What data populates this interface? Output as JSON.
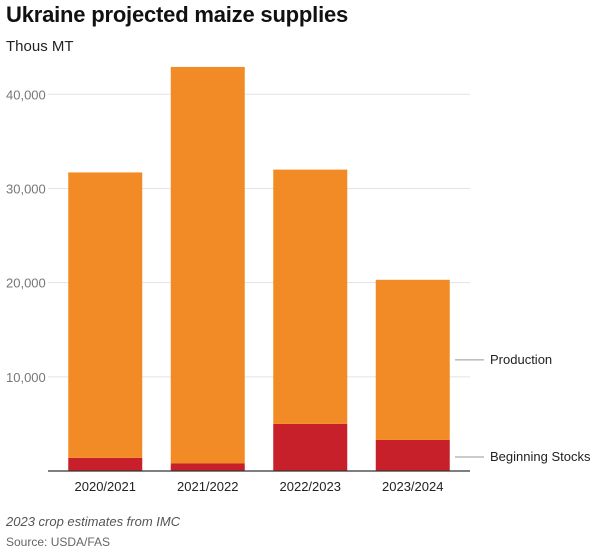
{
  "chart_data": {
    "type": "bar",
    "stacked": true,
    "title": "Ukraine projected maize supplies",
    "subtitle": "Thous MT",
    "categories": [
      "2020/2021",
      "2021/2022",
      "2022/2023",
      "2023/2024"
    ],
    "series": [
      {
        "name": "Beginning Stocks",
        "values": [
          1400,
          800,
          5000,
          3300
        ],
        "color": "#c8202a"
      },
      {
        "name": "Production",
        "values": [
          30300,
          42100,
          27000,
          17000
        ],
        "color": "#f28b25"
      }
    ],
    "yticks": [
      10000,
      20000,
      30000,
      40000
    ],
    "ytick_labels": [
      "10,000",
      "20,000",
      "30,000",
      "40,000"
    ],
    "ylim": [
      0,
      43000
    ],
    "grid": true,
    "legend_placement": "right"
  },
  "footer": {
    "note": "2023 crop estimates from IMC",
    "source": "Source: USDA/FAS"
  }
}
